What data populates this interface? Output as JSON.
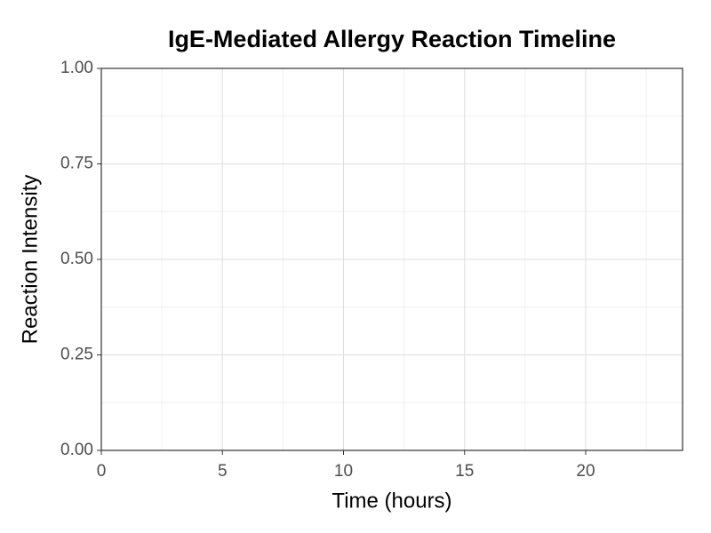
{
  "chart_data": {
    "type": "line",
    "title": "IgE-Mediated Allergy Reaction Timeline",
    "x_label": "Time (hours)",
    "y_label": "Reaction Intensity",
    "series": [],
    "xlim": [
      0,
      24
    ],
    "xticks": [
      0,
      5,
      10,
      15,
      20
    ],
    "ylim": [
      0,
      1
    ],
    "yticks": [
      {
        "value": 0,
        "label": "0.00"
      },
      {
        "value": 0.25,
        "label": "0.25"
      },
      {
        "value": 0.5,
        "label": "0.50"
      },
      {
        "value": 0.75,
        "label": "0.75"
      },
      {
        "value": 1,
        "label": "1.00"
      }
    ],
    "grid": true
  }
}
